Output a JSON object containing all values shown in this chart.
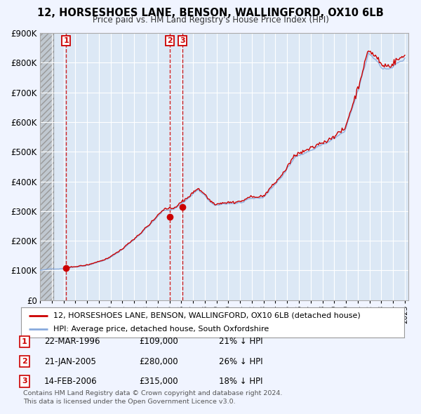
{
  "title": "12, HORSESHOES LANE, BENSON, WALLINGFORD, OX10 6LB",
  "subtitle": "Price paid vs. HM Land Registry's House Price Index (HPI)",
  "ylim": [
    0,
    900000
  ],
  "yticks": [
    0,
    100000,
    200000,
    300000,
    400000,
    500000,
    600000,
    700000,
    800000,
    900000
  ],
  "ytick_labels": [
    "£0",
    "£100K",
    "£200K",
    "£300K",
    "£400K",
    "£500K",
    "£600K",
    "£700K",
    "£800K",
    "£900K"
  ],
  "xlim_start": 1994.0,
  "xlim_end": 2025.3,
  "hatch_end": 1995.2,
  "red_color": "#cc0000",
  "blue_color": "#88aadd",
  "transactions": [
    {
      "num": 1,
      "year": 1996.22,
      "price": 109000,
      "date": "22-MAR-1996",
      "price_str": "£109,000",
      "pct": "21% ↓ HPI"
    },
    {
      "num": 2,
      "year": 2005.05,
      "price": 280000,
      "date": "21-JAN-2005",
      "price_str": "£280,000",
      "pct": "26% ↓ HPI"
    },
    {
      "num": 3,
      "year": 2006.12,
      "price": 315000,
      "date": "14-FEB-2006",
      "price_str": "£315,000",
      "pct": "18% ↓ HPI"
    }
  ],
  "legend_property": "12, HORSESHOES LANE, BENSON, WALLINGFORD, OX10 6LB (detached house)",
  "legend_hpi": "HPI: Average price, detached house, South Oxfordshire",
  "footer1": "Contains HM Land Registry data © Crown copyright and database right 2024.",
  "footer2": "This data is licensed under the Open Government Licence v3.0.",
  "plot_bg": "#dce8f5",
  "fig_bg": "#f0f4ff",
  "hatch_color": "#c0c8d0"
}
